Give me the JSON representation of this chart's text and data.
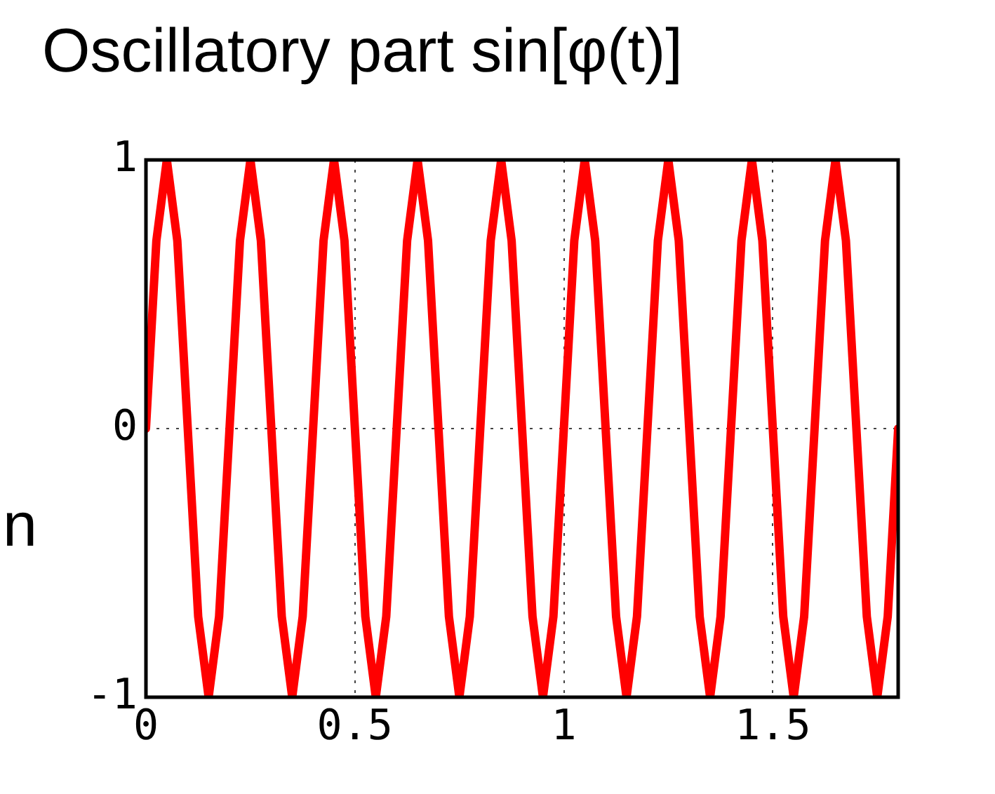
{
  "chart_data": {
    "type": "line",
    "title": "Oscillatory part sin[φ(t)]",
    "annotations": [
      "n"
    ],
    "x": [
      0,
      0.025,
      0.05,
      0.075,
      0.1,
      0.125,
      0.15,
      0.175,
      0.2,
      0.225,
      0.25,
      0.275,
      0.3,
      0.325,
      0.35,
      0.375,
      0.4,
      0.425,
      0.45,
      0.475,
      0.5,
      0.525,
      0.55,
      0.575,
      0.6,
      0.625,
      0.65,
      0.675,
      0.7,
      0.725,
      0.75,
      0.775,
      0.8,
      0.825,
      0.85,
      0.875,
      0.9,
      0.925,
      0.95,
      0.975,
      1,
      1.025,
      1.05,
      1.075,
      1.1,
      1.125,
      1.15,
      1.175,
      1.2,
      1.225,
      1.25,
      1.275,
      1.3,
      1.325,
      1.35,
      1.375,
      1.4,
      1.425,
      1.45,
      1.475,
      1.5,
      1.525,
      1.55,
      1.575,
      1.6,
      1.625,
      1.65,
      1.675,
      1.7,
      1.725,
      1.75,
      1.775,
      1.8
    ],
    "series": [
      {
        "color": "#ff0000",
        "values": [
          0,
          0.7,
          1,
          0.7,
          0,
          -0.7,
          -1,
          -0.7,
          0,
          0.7,
          1,
          0.7,
          0,
          -0.7,
          -1,
          -0.7,
          0,
          0.7,
          1,
          0.7,
          0,
          -0.7,
          -1,
          -0.7,
          0,
          0.7,
          1,
          0.7,
          0,
          -0.7,
          -1,
          -0.7,
          0,
          0.7,
          1,
          0.7,
          0,
          -0.7,
          -1,
          -0.7,
          0,
          0.7,
          1,
          0.7,
          0,
          -0.7,
          -1,
          -0.7,
          0,
          0.7,
          1,
          0.7,
          0,
          -0.7,
          -1,
          -0.7,
          0,
          0.7,
          1,
          0.7,
          0,
          -0.7,
          -1,
          -0.7,
          0,
          0.7,
          1,
          0.7,
          0,
          -0.7,
          -1,
          -0.7,
          0
        ]
      }
    ],
    "xlim": [
      0,
      1.8
    ],
    "xticks": [
      0,
      0.5,
      1,
      1.5
    ],
    "ylim": [
      -1,
      1
    ],
    "yticks": [
      -1,
      0,
      1
    ],
    "grid": true,
    "marker": "none",
    "line_style": "solid",
    "legend": false
  }
}
